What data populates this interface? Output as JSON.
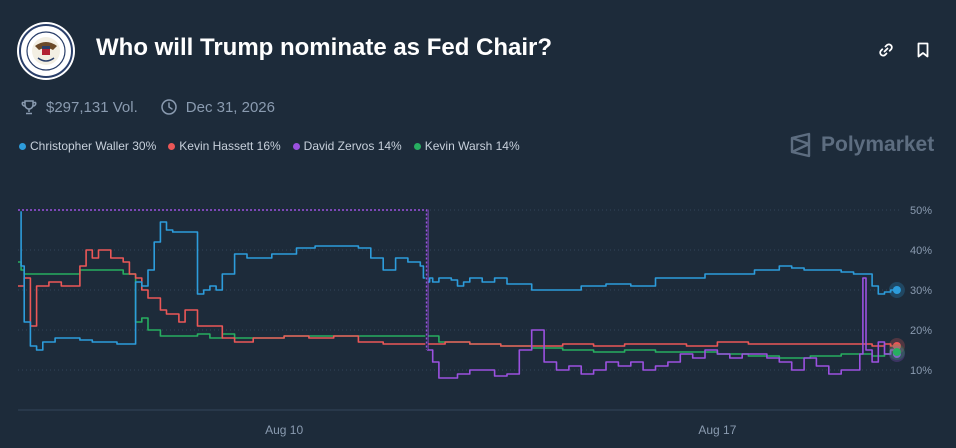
{
  "header": {
    "title": "Who will Trump nominate as Fed Chair?",
    "logo_icon": "federal-reserve-seal",
    "link_icon": "link-icon",
    "bookmark_icon": "bookmark-icon"
  },
  "meta": {
    "volume": "$297,131 Vol.",
    "end_date": "Dec 31, 2026",
    "volume_icon": "trophy-icon",
    "date_icon": "clock-icon"
  },
  "legend": [
    {
      "label": "Christopher Waller 30%",
      "color": "#2d9cdb"
    },
    {
      "label": "Kevin Hassett 16%",
      "color": "#eb5757"
    },
    {
      "label": "David Zervos 14%",
      "color": "#9b51e0"
    },
    {
      "label": "Kevin Warsh 14%",
      "color": "#27ae60"
    }
  ],
  "brand": {
    "name": "Polymarket"
  },
  "chart_data": {
    "type": "line",
    "title": "",
    "xlabel": "",
    "ylabel": "",
    "ylim": [
      0,
      55
    ],
    "yticks": [
      "50%",
      "40%",
      "30%",
      "20%",
      "10%"
    ],
    "ytick_values": [
      50,
      40,
      30,
      20,
      10
    ],
    "xticks": [
      "Aug 10",
      "Aug 17"
    ],
    "xtick_days": [
      10,
      17
    ],
    "xlim": [
      5.7,
      19.95
    ],
    "grid": "horizontal-dotted",
    "series": [
      {
        "name": "Christopher Waller",
        "color": "#2d9cdb",
        "x": [
          5.7,
          5.75,
          5.8,
          5.9,
          6.0,
          6.1,
          6.3,
          6.5,
          6.7,
          6.9,
          7.1,
          7.3,
          7.5,
          7.6,
          7.7,
          7.8,
          7.9,
          8.0,
          8.1,
          8.2,
          8.3,
          8.45,
          8.6,
          8.7,
          8.8,
          8.9,
          9.0,
          9.2,
          9.4,
          9.6,
          9.8,
          10.0,
          10.2,
          10.5,
          10.8,
          11.0,
          11.2,
          11.4,
          11.6,
          11.8,
          12.0,
          12.2,
          12.25,
          12.3,
          12.35,
          12.4,
          12.5,
          12.6,
          12.7,
          12.8,
          12.9,
          13.0,
          13.2,
          13.4,
          13.6,
          14.0,
          14.4,
          14.8,
          15.2,
          15.6,
          16.0,
          16.4,
          16.8,
          17.2,
          17.6,
          18.0,
          18.2,
          18.4,
          18.6,
          18.8,
          19.0,
          19.2,
          19.4,
          19.5,
          19.6,
          19.7,
          19.8,
          19.9
        ],
        "values": [
          50,
          36,
          22,
          16,
          15,
          17,
          18,
          18,
          17.5,
          17,
          17,
          16.5,
          16.5,
          32,
          31,
          35,
          42,
          47,
          45,
          44.5,
          44.5,
          44.5,
          29,
          30,
          31,
          30,
          34,
          39,
          38,
          38,
          39,
          39,
          40.5,
          41,
          41,
          41,
          40.5,
          38,
          35,
          38,
          37,
          36,
          33,
          32,
          33,
          32,
          33,
          33,
          32.5,
          31,
          32,
          33,
          32,
          33,
          31.5,
          30,
          30,
          31,
          31.5,
          31,
          33,
          33,
          34,
          34,
          35,
          36,
          35.5,
          35,
          35,
          35,
          34.5,
          34,
          34,
          31,
          29,
          29.5,
          30,
          30
        ]
      },
      {
        "name": "Kevin Hassett",
        "color": "#eb5757",
        "x": [
          5.7,
          5.8,
          5.9,
          6.0,
          6.2,
          6.4,
          6.6,
          6.7,
          6.8,
          6.9,
          7.0,
          7.2,
          7.4,
          7.5,
          7.6,
          7.7,
          7.8,
          7.9,
          8.0,
          8.1,
          8.3,
          8.4,
          8.6,
          8.8,
          9.0,
          9.2,
          9.5,
          10.0,
          10.4,
          10.8,
          11.2,
          11.6,
          12.0,
          12.3,
          12.6,
          13.0,
          13.5,
          14.0,
          14.5,
          15.0,
          15.5,
          16.0,
          16.5,
          17.0,
          17.5,
          18.0,
          18.5,
          19.0,
          19.5,
          19.7,
          19.8,
          19.9
        ],
        "values": [
          31,
          33,
          21,
          31,
          32,
          31,
          31,
          36,
          40,
          38,
          40,
          38,
          37,
          34,
          33,
          30,
          28,
          28,
          25,
          24,
          22,
          25,
          21,
          21,
          18,
          17,
          18,
          18.5,
          18,
          18.5,
          17,
          16.5,
          16.5,
          16.5,
          17,
          16.5,
          16,
          16,
          16.5,
          16,
          16.5,
          16.5,
          16,
          17,
          16.5,
          16.5,
          16.5,
          16.5,
          16,
          16.5,
          16,
          16
        ]
      },
      {
        "name": "David Zervos",
        "color": "#9b51e0",
        "x": [
          5.7,
          12.3,
          12.32,
          12.4,
          12.5,
          12.6,
          12.8,
          13.0,
          13.2,
          13.4,
          13.6,
          13.8,
          14.0,
          14.2,
          14.4,
          14.6,
          14.8,
          15.0,
          15.2,
          15.4,
          15.6,
          15.8,
          16.0,
          16.2,
          16.4,
          16.6,
          16.8,
          17.0,
          17.2,
          17.4,
          17.6,
          17.8,
          18.0,
          18.2,
          18.4,
          18.6,
          18.8,
          19.0,
          19.2,
          19.3,
          19.35,
          19.4,
          19.5,
          19.6,
          19.7,
          19.8,
          19.9
        ],
        "values": [
          50,
          50,
          15,
          12,
          8,
          8,
          9,
          10,
          10,
          8.5,
          9,
          15,
          20,
          12,
          10,
          11,
          9,
          10,
          12,
          11,
          12,
          10,
          11,
          12,
          14,
          13,
          15,
          14,
          13,
          14,
          14,
          13,
          12,
          10,
          13,
          11,
          9,
          10,
          10,
          14,
          33,
          15,
          12,
          17,
          14,
          15,
          14
        ]
      },
      {
        "name": "Kevin Warsh",
        "color": "#27ae60",
        "x": [
          5.7,
          5.75,
          5.8,
          6.0,
          6.2,
          6.4,
          6.6,
          6.7,
          6.8,
          7.0,
          7.2,
          7.4,
          7.5,
          7.6,
          7.7,
          7.8,
          8.0,
          8.2,
          8.4,
          8.6,
          8.8,
          9.0,
          9.2,
          9.5,
          10.0,
          10.5,
          11.0,
          11.5,
          12.0,
          12.5,
          13.0,
          13.5,
          14.0,
          14.5,
          15.0,
          15.5,
          16.0,
          16.5,
          17.0,
          17.5,
          18.0,
          18.5,
          19.0,
          19.5,
          19.7,
          19.8,
          19.9
        ],
        "values": [
          37,
          35,
          34,
          34,
          34,
          34,
          34,
          35,
          35,
          35,
          35,
          34,
          34,
          22,
          23,
          20,
          18.5,
          18.5,
          18.5,
          19,
          18,
          19,
          18,
          18,
          18.5,
          18.5,
          18.5,
          18.5,
          18.5,
          17,
          16.5,
          16,
          15.5,
          15,
          14.5,
          15,
          14.5,
          14.5,
          14,
          13.5,
          13,
          13.5,
          14,
          13.5,
          14,
          15,
          14.5
        ]
      }
    ]
  }
}
